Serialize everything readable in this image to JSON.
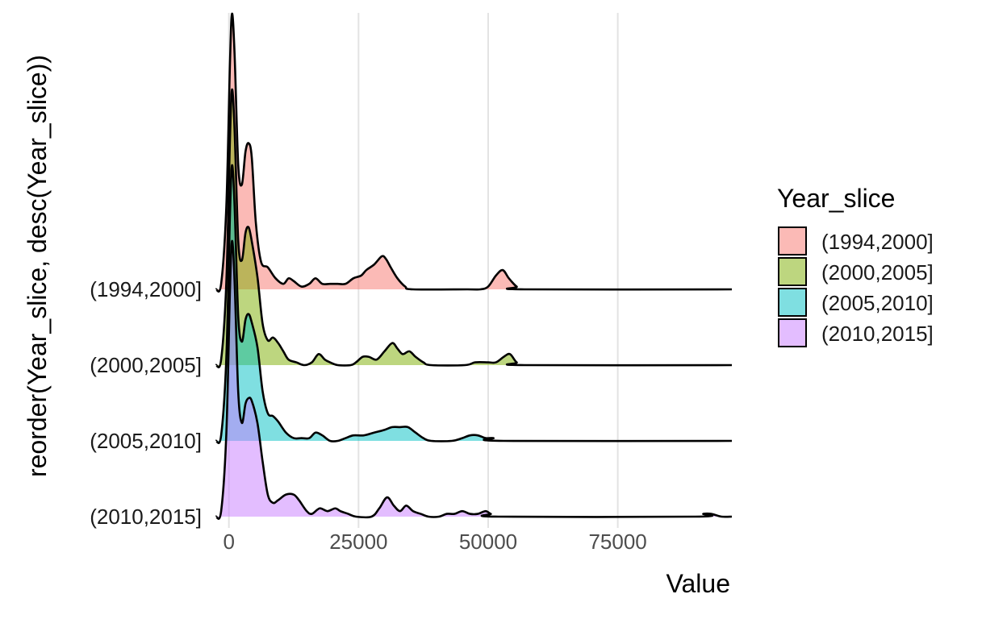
{
  "chart_data": {
    "type": "ridgeline density",
    "xlabel": "Value",
    "ylabel": "reorder(Year_slice, desc(Year_slice))",
    "x_ticks": [
      0,
      25000,
      50000,
      75000
    ],
    "x_tick_labels": [
      "0",
      "25000",
      "50000",
      "75000"
    ],
    "xlim": [
      -4000,
      97000
    ],
    "grid": "vertical major lines",
    "legend": {
      "title": "Year_slice",
      "position": "right"
    },
    "series": [
      {
        "name": "(1994,2000]",
        "color": "#F8766D",
        "density": [
          [
            -2500,
            0
          ],
          [
            -1500,
            0.02
          ],
          [
            -500,
            0.3
          ],
          [
            200,
            0.82
          ],
          [
            600,
            1.0
          ],
          [
            1100,
            0.85
          ],
          [
            1800,
            0.45
          ],
          [
            2500,
            0.38
          ],
          [
            3200,
            0.5
          ],
          [
            3800,
            0.53
          ],
          [
            4400,
            0.48
          ],
          [
            5200,
            0.24
          ],
          [
            6200,
            0.1
          ],
          [
            7500,
            0.08
          ],
          [
            9000,
            0.04
          ],
          [
            10500,
            0.02
          ],
          [
            11500,
            0.04
          ],
          [
            12500,
            0.03
          ],
          [
            14000,
            0.01
          ],
          [
            15500,
            0.02
          ],
          [
            16700,
            0.04
          ],
          [
            18000,
            0.02
          ],
          [
            19500,
            0.02
          ],
          [
            21000,
            0.02
          ],
          [
            22500,
            0.02
          ],
          [
            24000,
            0.04
          ],
          [
            25500,
            0.05
          ],
          [
            26500,
            0.07
          ],
          [
            28000,
            0.09
          ],
          [
            29500,
            0.12
          ],
          [
            30300,
            0.11
          ],
          [
            31200,
            0.08
          ],
          [
            32500,
            0.04
          ],
          [
            34000,
            0.01
          ],
          [
            35500,
            0
          ],
          [
            46000,
            0
          ],
          [
            48500,
            0
          ],
          [
            50000,
            0.01
          ],
          [
            51500,
            0.05
          ],
          [
            52800,
            0.07
          ],
          [
            54000,
            0.04
          ],
          [
            55500,
            0.01
          ],
          [
            57000,
            0
          ],
          [
            97000,
            0
          ]
        ]
      },
      {
        "name": "(2000,2005]",
        "color": "#7CAE00",
        "density": [
          [
            -2500,
            0
          ],
          [
            -1500,
            0.02
          ],
          [
            -500,
            0.3
          ],
          [
            200,
            0.82
          ],
          [
            600,
            1.0
          ],
          [
            1100,
            0.85
          ],
          [
            1800,
            0.45
          ],
          [
            2500,
            0.38
          ],
          [
            3200,
            0.48
          ],
          [
            3800,
            0.5
          ],
          [
            4400,
            0.45
          ],
          [
            5500,
            0.32
          ],
          [
            6500,
            0.15
          ],
          [
            7500,
            0.09
          ],
          [
            8500,
            0.1
          ],
          [
            9500,
            0.08
          ],
          [
            10500,
            0.05
          ],
          [
            11500,
            0.02
          ],
          [
            13000,
            0.01
          ],
          [
            14500,
            0
          ],
          [
            16000,
            0.01
          ],
          [
            17300,
            0.04
          ],
          [
            18500,
            0.02
          ],
          [
            19500,
            0.01
          ],
          [
            21000,
            0
          ],
          [
            23500,
            0
          ],
          [
            24500,
            0.01
          ],
          [
            25800,
            0.03
          ],
          [
            27000,
            0.03
          ],
          [
            28500,
            0.02
          ],
          [
            30000,
            0.05
          ],
          [
            31500,
            0.08
          ],
          [
            32500,
            0.06
          ],
          [
            33500,
            0.04
          ],
          [
            34800,
            0.05
          ],
          [
            36000,
            0.03
          ],
          [
            37500,
            0.01
          ],
          [
            39000,
            0
          ],
          [
            45500,
            0
          ],
          [
            47500,
            0.01
          ],
          [
            50000,
            0.01
          ],
          [
            51500,
            0.01
          ],
          [
            53000,
            0.03
          ],
          [
            54200,
            0.04
          ],
          [
            55500,
            0.01
          ],
          [
            57000,
            0
          ],
          [
            97000,
            0
          ]
        ]
      },
      {
        "name": "(2005,2010]",
        "color": "#00BFC4",
        "density": [
          [
            -2500,
            0
          ],
          [
            -1500,
            0.02
          ],
          [
            -500,
            0.3
          ],
          [
            200,
            0.82
          ],
          [
            600,
            1.0
          ],
          [
            1100,
            0.85
          ],
          [
            1800,
            0.45
          ],
          [
            2500,
            0.36
          ],
          [
            3200,
            0.44
          ],
          [
            3800,
            0.46
          ],
          [
            4400,
            0.43
          ],
          [
            5500,
            0.34
          ],
          [
            6500,
            0.18
          ],
          [
            7500,
            0.1
          ],
          [
            8500,
            0.09
          ],
          [
            9500,
            0.07
          ],
          [
            11000,
            0.03
          ],
          [
            12500,
            0.01
          ],
          [
            14000,
            0.01
          ],
          [
            15500,
            0.01
          ],
          [
            16700,
            0.03
          ],
          [
            18000,
            0.02
          ],
          [
            19500,
            0
          ],
          [
            21000,
            0
          ],
          [
            22500,
            0.01
          ],
          [
            24000,
            0.02
          ],
          [
            26000,
            0.02
          ],
          [
            28000,
            0.03
          ],
          [
            30000,
            0.04
          ],
          [
            31500,
            0.05
          ],
          [
            33000,
            0.05
          ],
          [
            34500,
            0.05
          ],
          [
            36000,
            0.03
          ],
          [
            37500,
            0.01
          ],
          [
            39000,
            0
          ],
          [
            43000,
            0
          ],
          [
            45000,
            0.01
          ],
          [
            46500,
            0.02
          ],
          [
            48000,
            0.02
          ],
          [
            49500,
            0.01
          ],
          [
            51000,
            0.01
          ],
          [
            53000,
            0
          ],
          [
            97000,
            0
          ]
        ]
      },
      {
        "name": "(2010,2015]",
        "color": "#C77CFF",
        "density": [
          [
            -2500,
            0
          ],
          [
            -1500,
            0.02
          ],
          [
            -500,
            0.3
          ],
          [
            200,
            0.82
          ],
          [
            600,
            1.0
          ],
          [
            1100,
            0.85
          ],
          [
            1800,
            0.45
          ],
          [
            2500,
            0.34
          ],
          [
            3200,
            0.41
          ],
          [
            3800,
            0.43
          ],
          [
            4400,
            0.42
          ],
          [
            5500,
            0.34
          ],
          [
            6500,
            0.2
          ],
          [
            7500,
            0.08
          ],
          [
            8500,
            0.05
          ],
          [
            9500,
            0.06
          ],
          [
            11000,
            0.08
          ],
          [
            12500,
            0.08
          ],
          [
            13500,
            0.06
          ],
          [
            15000,
            0.02
          ],
          [
            16000,
            0.01
          ],
          [
            17500,
            0.03
          ],
          [
            19000,
            0.02
          ],
          [
            20500,
            0.03
          ],
          [
            21500,
            0.02
          ],
          [
            23000,
            0.01
          ],
          [
            24500,
            0
          ],
          [
            27500,
            0
          ],
          [
            29000,
            0.03
          ],
          [
            30500,
            0.07
          ],
          [
            31800,
            0.04
          ],
          [
            33000,
            0.02
          ],
          [
            34200,
            0.04
          ],
          [
            35500,
            0.02
          ],
          [
            37000,
            0.01
          ],
          [
            38500,
            0
          ],
          [
            40500,
            0
          ],
          [
            42000,
            0.01
          ],
          [
            43500,
            0.01
          ],
          [
            45000,
            0.02
          ],
          [
            46500,
            0.01
          ],
          [
            48000,
            0.01
          ],
          [
            49500,
            0.02
          ],
          [
            50500,
            0.01
          ],
          [
            52000,
            0
          ],
          [
            90000,
            0
          ],
          [
            91500,
            0.01
          ],
          [
            93000,
            0.01
          ],
          [
            95000,
            0
          ],
          [
            97000,
            0
          ]
        ]
      }
    ]
  }
}
